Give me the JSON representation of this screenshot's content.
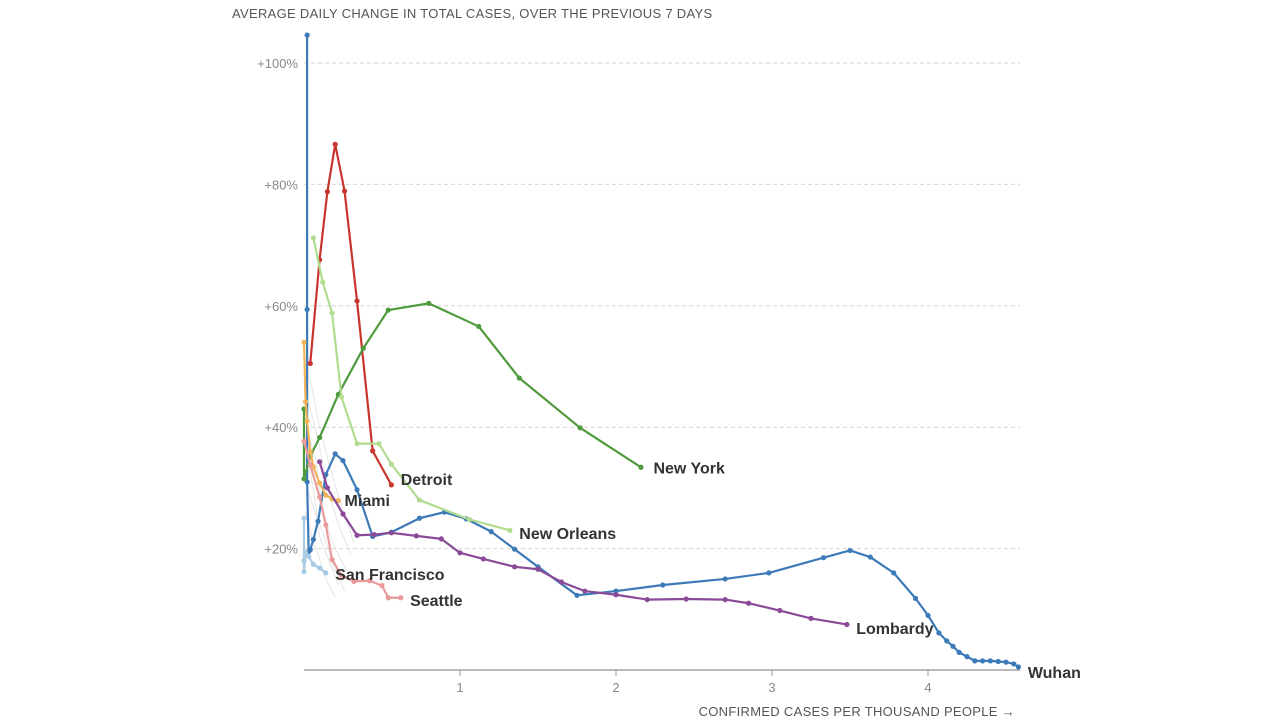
{
  "chart_data": {
    "type": "line",
    "title": "AVERAGE DAILY CHANGE IN TOTAL CASES, OVER THE PREVIOUS 7 DAYS",
    "xlabel": "CONFIRMED CASES PER THOUSAND PEOPLE →",
    "ylabel": "",
    "xlim": [
      0,
      4.6
    ],
    "ylim": [
      0,
      100
    ],
    "x_ticks": [
      {
        "value": 1,
        "label": "1"
      },
      {
        "value": 2,
        "label": "2"
      },
      {
        "value": 3,
        "label": "3"
      },
      {
        "value": 4,
        "label": "4"
      }
    ],
    "y_ticks": [
      {
        "value": 20,
        "label": "+20%"
      },
      {
        "value": 40,
        "label": "+40%"
      },
      {
        "value": 60,
        "label": "+60%"
      },
      {
        "value": 80,
        "label": "+80%"
      },
      {
        "value": 100,
        "label": "+100%"
      }
    ],
    "grid": "horizontal dashed",
    "series": [
      {
        "name": "Wuhan",
        "color": "#3c7ab8",
        "x": [
          0.02,
          0.02,
          0.02,
          0.03,
          0.04,
          0.06,
          0.09,
          0.14,
          0.2,
          0.25,
          0.34,
          0.44,
          0.56,
          0.74,
          0.9,
          1.04,
          1.2,
          1.35,
          1.5,
          1.75,
          2.0,
          2.3,
          2.7,
          2.98,
          3.33,
          3.5,
          3.63,
          3.78,
          3.92,
          4.0,
          4.07,
          4.12,
          4.16,
          4.2,
          4.25,
          4.3,
          4.35,
          4.4,
          4.45,
          4.5,
          4.55,
          4.58
        ],
        "y": [
          104.6,
          59.4,
          31.0,
          19.5,
          19.8,
          21.5,
          24.5,
          32.2,
          35.6,
          34.5,
          29.7,
          22.0,
          22.7,
          25.0,
          26.0,
          24.9,
          22.8,
          19.9,
          17.0,
          12.3,
          13.0,
          14.0,
          15.0,
          16.0,
          18.5,
          19.7,
          18.6,
          16.0,
          11.8,
          9.0,
          6.1,
          4.8,
          3.9,
          2.9,
          2.2,
          1.5,
          1.5,
          1.5,
          1.4,
          1.3,
          1.0,
          0.5
        ]
      },
      {
        "name": "Detroit",
        "color": "#c8342e",
        "x": [
          0.04,
          0.1,
          0.15,
          0.2,
          0.26,
          0.34,
          0.44,
          0.56
        ],
        "y": [
          50.5,
          67.6,
          78.8,
          86.6,
          78.9,
          60.8,
          36.1,
          30.5
        ]
      },
      {
        "name": "New York",
        "color": "#4e9a3c",
        "x": [
          0.0,
          0.0,
          0.04,
          0.1,
          0.22,
          0.38,
          0.54,
          0.8,
          1.12,
          1.38,
          1.77,
          2.16
        ],
        "y": [
          43.0,
          31.5,
          35.2,
          38.3,
          45.4,
          53.0,
          59.3,
          60.4,
          56.6,
          48.1,
          39.9,
          33.4
        ]
      },
      {
        "name": "New Orleans",
        "color": "#b2dc8f",
        "x": [
          0.06,
          0.12,
          0.18,
          0.24,
          0.34,
          0.48,
          0.56,
          0.74,
          1.06,
          1.32
        ],
        "y": [
          71.2,
          63.9,
          58.8,
          45.0,
          37.3,
          37.3,
          33.9,
          28.0,
          24.8,
          23.0
        ]
      },
      {
        "name": "Miami",
        "color": "#f2b35a",
        "x": [
          0.0,
          0.01,
          0.02,
          0.04,
          0.06,
          0.1,
          0.14,
          0.18,
          0.22
        ],
        "y": [
          54.0,
          44.2,
          41.0,
          36.0,
          33.5,
          30.8,
          28.8,
          28.2,
          27.9
        ]
      },
      {
        "name": "San Francisco",
        "color": "#a9cce4",
        "x": [
          0.0,
          0.0,
          0.0,
          0.01,
          0.03,
          0.06,
          0.1,
          0.14
        ],
        "y": [
          25.0,
          18.0,
          16.2,
          19.3,
          18.7,
          17.4,
          16.8,
          16.0
        ]
      },
      {
        "name": "Seattle",
        "color": "#ea9a9a",
        "x": [
          0.0,
          0.04,
          0.1,
          0.14,
          0.18,
          0.24,
          0.32,
          0.42,
          0.5,
          0.54,
          0.62
        ],
        "y": [
          37.7,
          33.8,
          28.5,
          23.9,
          18.2,
          15.6,
          14.6,
          14.7,
          13.9,
          11.9,
          11.9
        ]
      },
      {
        "name": "Lombardy",
        "color": "#8a4a98",
        "x": [
          0.1,
          0.15,
          0.25,
          0.34,
          0.45,
          0.56,
          0.72,
          0.88,
          1.0,
          1.15,
          1.35,
          1.5,
          1.65,
          1.8,
          2.0,
          2.2,
          2.45,
          2.7,
          2.85,
          3.05,
          3.25,
          3.48
        ],
        "y": [
          34.3,
          30.0,
          25.7,
          22.2,
          22.3,
          22.6,
          22.1,
          21.6,
          19.3,
          18.3,
          17.0,
          16.6,
          14.5,
          13.0,
          12.4,
          11.6,
          11.7,
          11.6,
          11.0,
          9.8,
          8.5,
          7.5
        ]
      }
    ],
    "annotations": [
      {
        "text": "Wuhan",
        "x": 4.64,
        "y": -0.3
      },
      {
        "text": "Detroit",
        "x": 0.62,
        "y": 31.5
      },
      {
        "text": "New York",
        "x": 2.24,
        "y": 33.4
      },
      {
        "text": "New Orleans",
        "x": 1.38,
        "y": 22.6
      },
      {
        "text": "Miami",
        "x": 0.26,
        "y": 28.0
      },
      {
        "text": "San Francisco",
        "x": 0.2,
        "y": 15.8
      },
      {
        "text": "Seattle",
        "x": 0.68,
        "y": 11.5
      },
      {
        "text": "Lombardy",
        "x": 3.54,
        "y": 6.9
      }
    ]
  }
}
